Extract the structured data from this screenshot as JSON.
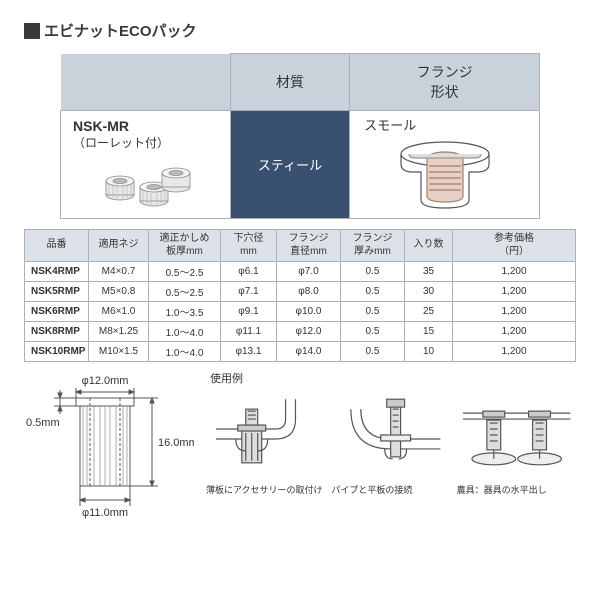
{
  "title": "エビナットECOパック",
  "top": {
    "blank": "",
    "material_header": "材質",
    "flange_header": "フランジ\n形状",
    "nsk_label": "NSK-MR",
    "nsk_sub": "（ローレット付）",
    "material_value": "スティール",
    "flange_label": "スモール"
  },
  "spec": {
    "headers": [
      "品番",
      "適用ネジ",
      "適正かしめ\n板厚mm",
      "下穴径\nmm",
      "フランジ\n直径mm",
      "フランジ\n厚みmm",
      "入り数",
      "参考価格\n（円）"
    ],
    "rows": [
      [
        "NSK4RMP",
        "M4×0.7",
        "0.5～2.5",
        "φ6.1",
        "φ7.0",
        "0.5",
        "35",
        "1,200"
      ],
      [
        "NSK5RMP",
        "M5×0.8",
        "0.5～2.5",
        "φ7.1",
        "φ8.0",
        "0.5",
        "30",
        "1,200"
      ],
      [
        "NSK6RMP",
        "M6×1.0",
        "1.0～3.5",
        "φ9.1",
        "φ10.0",
        "0.5",
        "25",
        "1,200"
      ],
      [
        "NSK8RMP",
        "M8×1.25",
        "1.0～4.0",
        "φ11.1",
        "φ12.0",
        "0.5",
        "15",
        "1,200"
      ],
      [
        "NSK10RMP",
        "M10×1.5",
        "1.0～4.0",
        "φ13.1",
        "φ14.0",
        "0.5",
        "10",
        "1,200"
      ]
    ]
  },
  "dims": {
    "top_dia": "φ12.0mm",
    "bottom_dia": "φ11.0mm",
    "flange_t": "0.5mm",
    "length": "16.0mm"
  },
  "usage": {
    "label": "使用例",
    "captions": [
      "薄板にアクセサリーの取付け",
      "パイプと平板の接続",
      "農具：器具の水平出し"
    ]
  },
  "colors": {
    "header_bg": "#c9d2db",
    "subheader_bg": "#dce2e8",
    "border": "#a8b0b8",
    "dark_blue": "#3a5070",
    "line": "#555"
  }
}
